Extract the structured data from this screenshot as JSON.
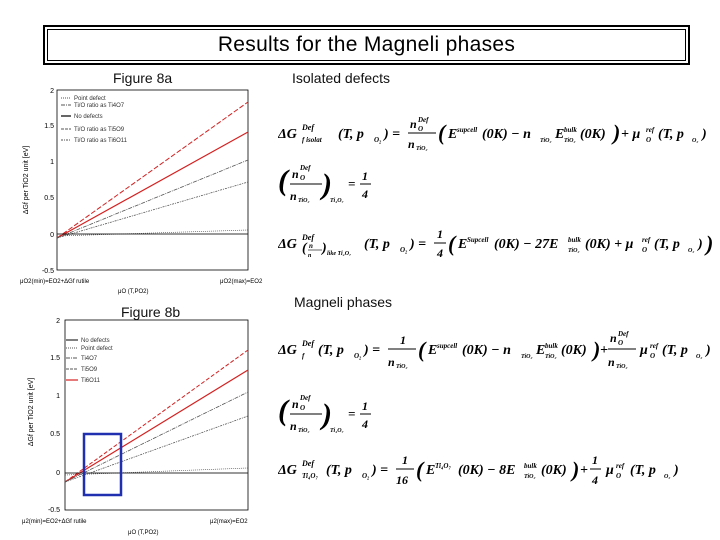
{
  "title": "Results for the Magneli phases",
  "captions": {
    "fig_a": "Figure 8a",
    "fig_b": "Figure 8b",
    "isolated": "Isolated defects",
    "magneli": "Magneli phases"
  },
  "figure_a": {
    "legend": [
      "Point defect",
      "Ti/O ratio as Ti4O7",
      "No defects",
      "Ti/O ratio as Ti5O9",
      "Ti/O ratio as Ti6O11"
    ],
    "ylabel": "ΔGf per TiO2 unit [eV]",
    "yticks": [
      "2",
      "1.5",
      "1",
      "0.5",
      "0",
      "-0.5"
    ],
    "xlabel_min": "μO2(min)=EO2+ΔGf rutile",
    "xlabel_mid": "μO (T,PO2)",
    "xlabel_max": "μO2(max)=EO2"
  },
  "figure_b": {
    "legend": [
      "No defects",
      "Point defect",
      "Ti4O7",
      "Ti5O9",
      "Ti6O11"
    ],
    "ylabel": "ΔGf per TiO2 unit [eV]",
    "yticks": [
      "2",
      "1.5",
      "1",
      "0.5",
      "0",
      "-0.5"
    ],
    "xlabel_min": "μ2(min)=EO2+ΔGf rutile",
    "xlabel_mid": "μO (T,PO2)",
    "xlabel_max": "μ2(max)=EO2"
  },
  "colors": {
    "highlight_box": "#1f2fb0",
    "red_series": "#d42020"
  }
}
